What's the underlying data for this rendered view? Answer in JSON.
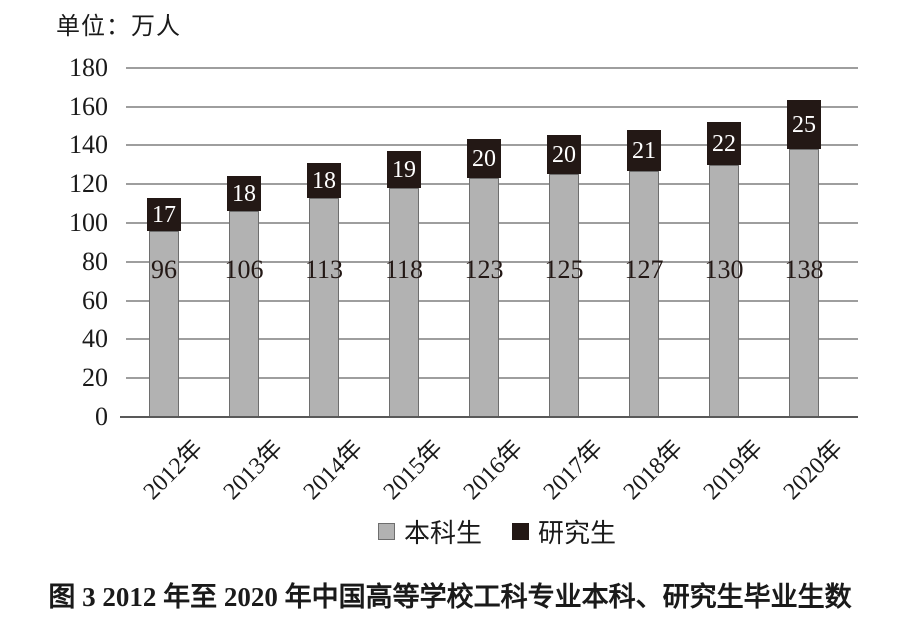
{
  "unit_label": "单位：万人",
  "chart_data": {
    "type": "bar",
    "stacked": true,
    "unit": "万人",
    "categories": [
      "2012年",
      "2013年",
      "2014年",
      "2015年",
      "2016年",
      "2017年",
      "2018年",
      "2019年",
      "2020年"
    ],
    "series": [
      {
        "name": "本科生",
        "values": [
          96,
          106,
          113,
          118,
          123,
          125,
          127,
          130,
          138
        ],
        "color": "#b2b2b2"
      },
      {
        "name": "研究生",
        "values": [
          17,
          18,
          18,
          19,
          20,
          20,
          21,
          22,
          25
        ],
        "color": "#231815"
      }
    ],
    "totals": [
      113,
      124,
      131,
      137,
      143,
      145,
      148,
      152,
      163
    ],
    "ylim": [
      0,
      180
    ],
    "yticks": [
      0,
      20,
      40,
      60,
      80,
      100,
      120,
      140,
      160,
      180
    ],
    "grid": "horizontal",
    "legend_position": "bottom",
    "value_labels": "inside"
  },
  "colors": {
    "gridline": "#9e9e9e",
    "axis": "#595959",
    "bar_border": "#6e6e6e",
    "undergrad_value_text": "#231815",
    "grad_value_text": "#ffffff",
    "text": "#1a1a1a"
  },
  "caption": "图 3  2012 年至 2020 年中国高等学校工科专业本科、研究生毕业生数"
}
